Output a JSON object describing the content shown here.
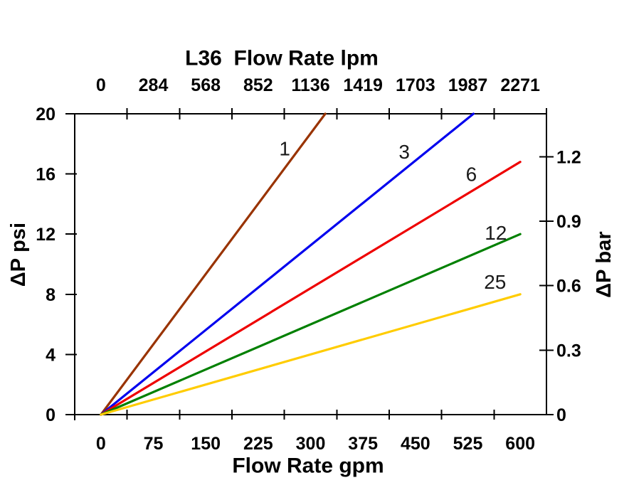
{
  "page": {
    "background": "#ffffff",
    "text_color": "#000000"
  },
  "chart_data": {
    "type": "line",
    "title": "L36  Flow Rate lpm",
    "axes": {
      "top": {
        "tick_labels": [
          "0",
          "284",
          "568",
          "852",
          "1136",
          "1419",
          "1703",
          "1987",
          "2271"
        ],
        "unit": "lpm"
      },
      "bottom": {
        "label": "Flow Rate gpm",
        "tick_labels": [
          "0",
          "75",
          "150",
          "225",
          "300",
          "375",
          "450",
          "525",
          "600"
        ],
        "values": [
          0,
          75,
          150,
          225,
          300,
          375,
          450,
          525,
          600
        ],
        "step_gpm": 75
      },
      "left": {
        "label": "ΔP psi",
        "tick_values": [
          0,
          4,
          8,
          12,
          16,
          20
        ],
        "range": [
          0,
          20
        ]
      },
      "right": {
        "label": "ΔP bar",
        "tick_values": [
          0,
          0.3,
          0.6,
          0.9,
          1.2
        ],
        "range": [
          0,
          1.4
        ]
      }
    },
    "series": [
      {
        "label": "1",
        "color": "#993300",
        "points_gpm_psi": [
          [
            0,
            0
          ],
          [
            321,
            20
          ]
        ],
        "clipped_at_top": true,
        "label_at_gpm_psi": [
          263,
          17.7
        ]
      },
      {
        "label": "3",
        "color": "#0000EE",
        "points_gpm_psi": [
          [
            0,
            0
          ],
          [
            533,
            20
          ]
        ],
        "clipped_at_top": true,
        "label_at_gpm_psi": [
          434,
          17.5
        ]
      },
      {
        "label": "6",
        "color": "#EE0000",
        "points_gpm_psi": [
          [
            0,
            0
          ],
          [
            600,
            16.8
          ]
        ],
        "clipped_at_top": false,
        "label_at_gpm_psi": [
          530,
          16.0
        ]
      },
      {
        "label": "12",
        "color": "#008000",
        "points_gpm_psi": [
          [
            0,
            0
          ],
          [
            600,
            12.0
          ]
        ],
        "clipped_at_top": false,
        "label_at_gpm_psi": [
          565,
          12.1
        ]
      },
      {
        "label": "25",
        "color": "#FFCC00",
        "points_gpm_psi": [
          [
            0,
            0
          ],
          [
            600,
            8.0
          ]
        ],
        "clipped_at_top": false,
        "label_at_gpm_psi": [
          564,
          8.85
        ]
      }
    ],
    "layout_hints": {
      "grid": false,
      "frame": true,
      "legend": "inline-line-labels",
      "category_tick_style": "between-labels"
    }
  }
}
